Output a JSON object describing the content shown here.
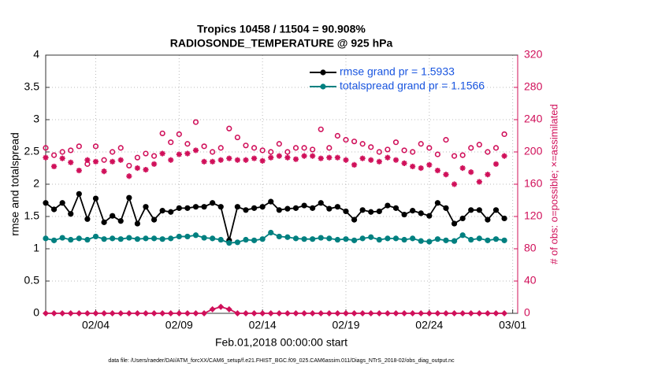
{
  "chart_data": {
    "type": "line",
    "title": "Tropics 10458 / 11504 = 90.908%",
    "subtitle": "RADIOSONDE_TEMPERATURE @ 925 hPa",
    "x_label": "Feb.01,2018 00:00:00 start",
    "y_label": "rmse and totalspread",
    "y2_label": "# of obs: o=possible; ×=assimilated",
    "source": "data file: /Users/raeder/DAI/ATM_forcXX/CAM6_setup/f.e21.FHIST_BGC.f09_025.CAM6assim.011/Diags_NTrS_2018-02/obs_diag_output.nc",
    "x": [
      0,
      0.5,
      1,
      1.5,
      2,
      2.5,
      3,
      3.5,
      4,
      4.5,
      5,
      5.5,
      6,
      6.5,
      7,
      7.5,
      8,
      8.5,
      9,
      9.5,
      10,
      10.5,
      11,
      11.5,
      12,
      12.5,
      13,
      13.5,
      14,
      14.5,
      15,
      15.5,
      16,
      16.5,
      17,
      17.5,
      18,
      18.5,
      19,
      19.5,
      20,
      20.5,
      21,
      21.5,
      22,
      22.5,
      23,
      23.5,
      24,
      24.5,
      25,
      25.5,
      26,
      26.5,
      27,
      27.5
    ],
    "xlim": [
      0,
      28.3
    ],
    "xticks": [
      {
        "value": 3,
        "label": "02/04"
      },
      {
        "value": 8,
        "label": "02/09"
      },
      {
        "value": 13,
        "label": "02/14"
      },
      {
        "value": 18,
        "label": "02/19"
      },
      {
        "value": 23,
        "label": "02/24"
      },
      {
        "value": 28,
        "label": "03/01"
      }
    ],
    "ylim": [
      0,
      4
    ],
    "yticks": [
      0,
      0.5,
      1,
      1.5,
      2,
      2.5,
      3,
      3.5,
      4
    ],
    "y2lim": [
      0,
      320
    ],
    "y2ticks": [
      0,
      40,
      80,
      120,
      160,
      200,
      240,
      280,
      320
    ],
    "grid": true,
    "legend": "top-right",
    "legend_text_color": "#1a56e0",
    "series": [
      {
        "name": "rmse grand pr = 1.5933",
        "color": "#000000",
        "marker": "dot",
        "line": true,
        "values": [
          1.71,
          1.61,
          1.71,
          1.54,
          1.85,
          1.46,
          1.78,
          1.41,
          1.51,
          1.43,
          1.79,
          1.39,
          1.65,
          1.45,
          1.59,
          1.57,
          1.63,
          1.63,
          1.65,
          1.65,
          1.71,
          1.65,
          1.13,
          1.65,
          1.6,
          1.63,
          1.65,
          1.73,
          1.6,
          1.62,
          1.63,
          1.67,
          1.63,
          1.71,
          1.62,
          1.65,
          1.58,
          1.45,
          1.6,
          1.57,
          1.58,
          1.67,
          1.63,
          1.53,
          1.59,
          1.55,
          1.51,
          1.71,
          1.63,
          1.39,
          1.47,
          1.6,
          1.6,
          1.45,
          1.6,
          1.47
        ]
      },
      {
        "name": "totalspread grand pr = 1.1566",
        "color": "#008080",
        "marker": "dot",
        "line": true,
        "values": [
          1.16,
          1.13,
          1.17,
          1.14,
          1.16,
          1.14,
          1.19,
          1.15,
          1.16,
          1.15,
          1.17,
          1.15,
          1.16,
          1.16,
          1.15,
          1.16,
          1.19,
          1.19,
          1.21,
          1.17,
          1.16,
          1.14,
          1.09,
          1.1,
          1.14,
          1.13,
          1.15,
          1.25,
          1.19,
          1.18,
          1.16,
          1.15,
          1.15,
          1.17,
          1.16,
          1.14,
          1.15,
          1.13,
          1.16,
          1.18,
          1.14,
          1.16,
          1.16,
          1.14,
          1.16,
          1.12,
          1.11,
          1.15,
          1.13,
          1.12,
          1.21,
          1.14,
          1.16,
          1.13,
          1.15,
          1.13
        ]
      },
      {
        "color": "#d0105a",
        "marker": "open-circle",
        "line": false,
        "axis": "y2",
        "values": [
          205,
          196,
          200,
          202,
          207,
          185,
          207,
          190,
          200,
          205,
          183,
          193,
          198,
          195,
          223,
          212,
          222,
          210,
          237,
          207,
          200,
          205,
          229,
          218,
          208,
          205,
          202,
          200,
          210,
          200,
          205,
          205,
          203,
          228,
          205,
          220,
          215,
          213,
          210,
          206,
          200,
          203,
          212,
          202,
          200,
          210,
          205,
          197,
          215,
          195,
          196,
          205,
          209,
          200,
          205,
          222
        ]
      },
      {
        "color": "#d0105a",
        "marker": "asterisk",
        "line": false,
        "axis": "y2",
        "values": [
          193,
          182,
          192,
          187,
          177,
          190,
          188,
          176,
          188,
          190,
          170,
          180,
          178,
          185,
          198,
          190,
          197,
          198,
          202,
          188,
          188,
          190,
          192,
          190,
          190,
          192,
          189,
          193,
          195,
          193,
          191,
          195,
          195,
          192,
          193,
          193,
          190,
          184,
          192,
          190,
          188,
          193,
          190,
          186,
          182,
          180,
          184,
          177,
          172,
          160,
          180,
          175,
          163,
          172,
          185,
          195
        ]
      },
      {
        "color": "#d0105a",
        "marker": "diamond",
        "line": true,
        "axis": "y2",
        "values": [
          0,
          0,
          0,
          0,
          0,
          0,
          0,
          0,
          0,
          0,
          0,
          0,
          0,
          0,
          0,
          0,
          0,
          0,
          0,
          0,
          5,
          8,
          5,
          0,
          0,
          0,
          0,
          0,
          0,
          0,
          0,
          0,
          0,
          0,
          0,
          0,
          0,
          0,
          0,
          0,
          0,
          0,
          0,
          0,
          0,
          0,
          0,
          0,
          0,
          0,
          0,
          0,
          0,
          0,
          0,
          0
        ]
      }
    ]
  }
}
